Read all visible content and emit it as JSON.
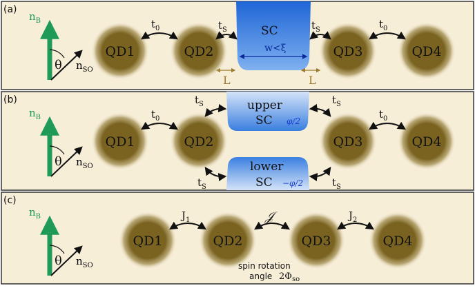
{
  "colors": {
    "panel_bg": "#f7eed8",
    "panel_border": "#333333",
    "dot": "#7a6320",
    "sc_blue": "#3a7fe0",
    "sc_light": "#c9dcf7",
    "green_arrow": "#1f9a57",
    "lead": "#9a7a2a",
    "phase_text": "#1a3fd0"
  },
  "panel_a": {
    "tag": "(a)",
    "field_label": "n",
    "field_sub": "B",
    "angle": "θ",
    "so_label": "n",
    "so_sub": "SO",
    "dots": [
      "QD1",
      "QD2",
      "QD3",
      "QD4"
    ],
    "t0_left": "t",
    "t0_left_sub": "0",
    "ts_left": "t",
    "ts_left_sub": "S",
    "ts_right": "t",
    "ts_right_sub": "S",
    "t0_right": "t",
    "t0_right_sub": "0",
    "sc_label": "SC",
    "width_label": "w<ξ",
    "lead_left": "L",
    "lead_right": "L"
  },
  "panel_b": {
    "tag": "(b)",
    "field_label": "n",
    "field_sub": "B",
    "angle": "θ",
    "so_label": "n",
    "so_sub": "SO",
    "dots": [
      "QD1",
      "QD2",
      "QD3",
      "QD4"
    ],
    "t0_left": "t",
    "t0_left_sub": "0",
    "t0_right": "t",
    "t0_right_sub": "0",
    "ts_label": "t",
    "ts_sub": "S",
    "upper_word": "upper",
    "upper_sc": "SC",
    "upper_phase": "φ/2",
    "lower_word": "lower",
    "lower_sc": "SC",
    "lower_phase": "−φ/2"
  },
  "panel_c": {
    "tag": "(c)",
    "field_label": "n",
    "field_sub": "B",
    "angle": "θ",
    "so_label": "n",
    "so_sub": "SO",
    "dots": [
      "QD1",
      "QD2",
      "QD3",
      "QD4"
    ],
    "j1": "J",
    "j1_sub": "1",
    "jmid": "𝒥",
    "j2": "J",
    "j2_sub": "2",
    "rotation_line1": "spin rotation",
    "rotation_line2": "angle",
    "rotation_value": "2Φ",
    "rotation_sub": "so"
  }
}
